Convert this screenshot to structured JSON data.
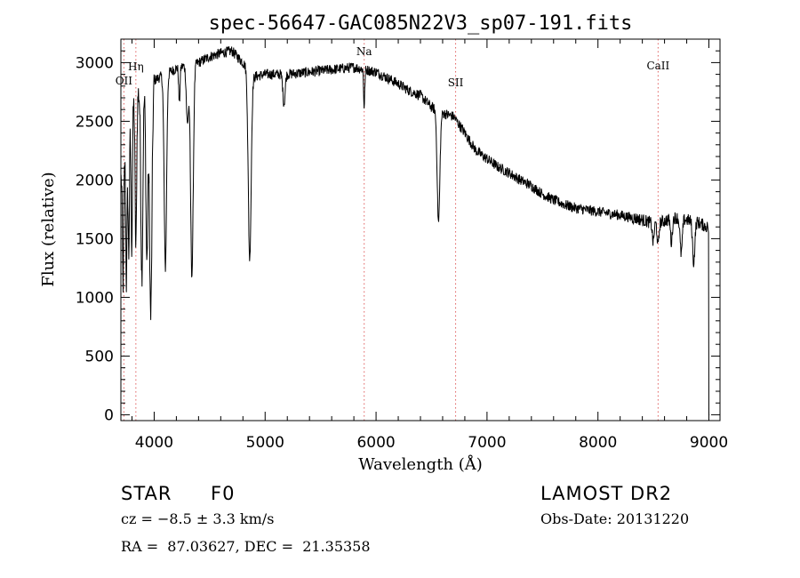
{
  "chart_data": {
    "type": "line",
    "title": "spec-56647-GAC085N22V3_sp07-191.fits",
    "xlabel": "Wavelength (Å)",
    "ylabel": "Flux (relative)",
    "xlim": [
      3700,
      9100
    ],
    "ylim": [
      -50,
      3200
    ],
    "grid": false,
    "x_ticks": [
      4000,
      5000,
      6000,
      7000,
      8000,
      9000
    ],
    "y_ticks": [
      0,
      500,
      1000,
      1500,
      2000,
      2500,
      3000
    ],
    "x_tick_labels": [
      "4000",
      "5000",
      "6000",
      "7000",
      "8000",
      "9000"
    ],
    "y_tick_labels": [
      "0",
      "500",
      "1000",
      "1500",
      "2000",
      "2500",
      "3000"
    ],
    "continuum": [
      [
        3700,
        2000
      ],
      [
        3800,
        2650
      ],
      [
        3900,
        2800
      ],
      [
        4000,
        2850
      ],
      [
        4100,
        2900
      ],
      [
        4200,
        2950
      ],
      [
        4300,
        2980
      ],
      [
        4400,
        3000
      ],
      [
        4500,
        3050
      ],
      [
        4600,
        3080
      ],
      [
        4700,
        3100
      ],
      [
        4800,
        3000
      ],
      [
        4900,
        2880
      ],
      [
        5000,
        2900
      ],
      [
        5200,
        2900
      ],
      [
        5500,
        2930
      ],
      [
        5800,
        2960
      ],
      [
        6000,
        2920
      ],
      [
        6100,
        2870
      ],
      [
        6200,
        2820
      ],
      [
        6300,
        2760
      ],
      [
        6400,
        2720
      ],
      [
        6500,
        2620
      ],
      [
        6600,
        2570
      ],
      [
        6700,
        2540
      ],
      [
        6800,
        2400
      ],
      [
        6900,
        2250
      ],
      [
        7000,
        2180
      ],
      [
        7100,
        2110
      ],
      [
        7200,
        2060
      ],
      [
        7300,
        2000
      ],
      [
        7400,
        1950
      ],
      [
        7500,
        1880
      ],
      [
        7600,
        1830
      ],
      [
        7700,
        1790
      ],
      [
        7800,
        1760
      ],
      [
        8000,
        1730
      ],
      [
        8200,
        1700
      ],
      [
        8400,
        1660
      ],
      [
        8500,
        1630
      ],
      [
        8600,
        1650
      ],
      [
        8700,
        1680
      ],
      [
        8800,
        1660
      ],
      [
        8900,
        1640
      ],
      [
        8980,
        1600
      ]
    ],
    "absorption_features": [
      {
        "center": 3720,
        "depth": 1000,
        "width": 6
      },
      {
        "center": 3750,
        "depth": 1200,
        "width": 6
      },
      {
        "center": 3771,
        "depth": 1100,
        "width": 6
      },
      {
        "center": 3798,
        "depth": 1200,
        "width": 6
      },
      {
        "center": 3835,
        "depth": 1300,
        "width": 7
      },
      {
        "center": 3889,
        "depth": 1600,
        "width": 9
      },
      {
        "center": 3934,
        "depth": 1500,
        "width": 9
      },
      {
        "center": 3969,
        "depth": 2000,
        "width": 11
      },
      {
        "center": 4101,
        "depth": 1650,
        "width": 11
      },
      {
        "center": 4227,
        "depth": 300,
        "width": 6
      },
      {
        "center": 4300,
        "depth": 500,
        "width": 10
      },
      {
        "center": 4340,
        "depth": 1800,
        "width": 12
      },
      {
        "center": 4861,
        "depth": 1600,
        "width": 13
      },
      {
        "center": 5170,
        "depth": 250,
        "width": 10
      },
      {
        "center": 5893,
        "depth": 320,
        "width": 5
      },
      {
        "center": 6563,
        "depth": 950,
        "width": 12
      },
      {
        "center": 8498,
        "depth": 160,
        "width": 8
      },
      {
        "center": 8542,
        "depth": 200,
        "width": 8
      },
      {
        "center": 8662,
        "depth": 200,
        "width": 8
      },
      {
        "center": 8750,
        "depth": 300,
        "width": 10
      },
      {
        "center": 8863,
        "depth": 350,
        "width": 10
      }
    ],
    "end_drop": {
      "x": 9000,
      "y": 0
    },
    "noise_amplitude": 45,
    "line_markers": [
      {
        "label": "OII",
        "x": 3727
      },
      {
        "label": "Hη",
        "x": 3835
      },
      {
        "label": "Na",
        "x": 5893
      },
      {
        "label": "SII",
        "x": 6717
      },
      {
        "label": "CaII",
        "x": 8542
      }
    ]
  },
  "info": {
    "class_label": "STAR",
    "subclass": "F0",
    "survey": "LAMOST DR2",
    "cz": "cz = −8.5 ± 3.3 km/s",
    "obs_date": "Obs-Date: 20131220",
    "coords": "RA =  87.03627, DEC =  21.35358"
  },
  "colors": {
    "marker": "#e06060",
    "axis": "#000000",
    "line": "#000000"
  }
}
